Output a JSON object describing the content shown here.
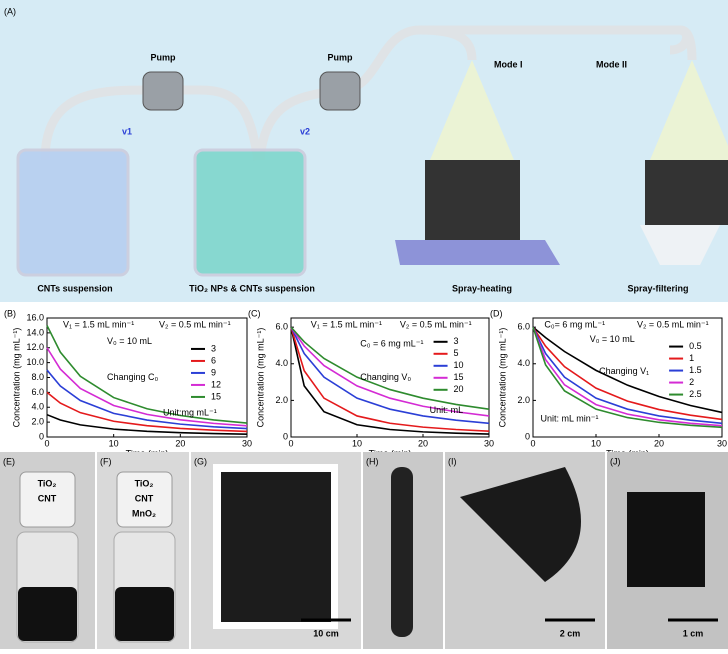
{
  "panel_a": {
    "label": "(A)",
    "pump_1": "Pump",
    "pump_2": "Pump",
    "flow_1": "v1",
    "flow_2": "v2",
    "mode_1": "Mode I",
    "mode_2": "Mode II",
    "beaker_1": "CNTs suspension",
    "beaker_2": "TiO₂ NPs & CNTs suspension",
    "process_1": "Spray-heating",
    "process_2": "Spray-filtering"
  },
  "chart_data": [
    {
      "type": "line",
      "panel": "(B)",
      "xlabel": "Time (min)",
      "ylabel": "Concentration (mg mL⁻¹)",
      "x": [
        0,
        2,
        5,
        10,
        15,
        20,
        25,
        30
      ],
      "xlim": [
        0,
        30
      ],
      "xticks": [
        0,
        10,
        20,
        30
      ],
      "ylim": [
        0,
        16
      ],
      "yticks": [
        0,
        {
          "value": 2,
          "label": "2.0"
        },
        {
          "value": 4,
          "label": "4.0"
        },
        {
          "value": 6,
          "label": "6.0"
        },
        {
          "value": 8,
          "label": "8.0"
        },
        {
          "value": 10,
          "label": "10.0"
        },
        {
          "value": 12,
          "label": "12.0"
        },
        {
          "value": 14,
          "label": "14.0"
        },
        {
          "value": 16,
          "label": "16.0"
        }
      ],
      "annotations": [
        "V₁ = 1.5 mL min⁻¹",
        "V₂ = 0.5 mL min⁻¹",
        "V₀ = 10 mL",
        "Changing C₀",
        "Unit:mg mL⁻¹"
      ],
      "series": [
        {
          "name": "3",
          "color": "#000000",
          "values": [
            3,
            2.28,
            1.63,
            1.06,
            0.76,
            0.58,
            0.46,
            0.38
          ]
        },
        {
          "name": "6",
          "color": "#e41a1c",
          "values": [
            6,
            4.56,
            3.27,
            2.12,
            1.52,
            1.15,
            0.92,
            0.75
          ]
        },
        {
          "name": "9",
          "color": "#2b3fd6",
          "values": [
            9,
            6.85,
            4.9,
            3.18,
            2.28,
            1.73,
            1.37,
            1.13
          ]
        },
        {
          "name": "12",
          "color": "#d42bd4",
          "values": [
            12,
            9.13,
            6.53,
            4.24,
            3.04,
            2.31,
            1.83,
            1.5
          ]
        },
        {
          "name": "15",
          "color": "#2e8b2e",
          "values": [
            15,
            11.41,
            8.16,
            5.3,
            3.8,
            2.89,
            2.29,
            1.88
          ]
        }
      ]
    },
    {
      "type": "line",
      "panel": "(C)",
      "xlabel": "Time (min)",
      "ylabel": "Concentration (mg mL⁻¹)",
      "x": [
        0,
        2,
        5,
        10,
        15,
        20,
        25,
        30
      ],
      "xlim": [
        0,
        30
      ],
      "xticks": [
        0,
        10,
        20,
        30
      ],
      "ylim": [
        0,
        6.5
      ],
      "yticks": [
        0,
        {
          "value": 2,
          "label": "2.0"
        },
        {
          "value": 4,
          "label": "4.0"
        },
        {
          "value": 6,
          "label": "6.0"
        }
      ],
      "annotations": [
        "V₁ = 1.5 mL min⁻¹",
        "V₂ = 0.5 mL min⁻¹",
        "C₀ = 6 mg mL⁻¹",
        "Changing V₀",
        "Unit: mL"
      ],
      "series": [
        {
          "name": "3",
          "color": "#000000",
          "values": [
            6,
            2.79,
            1.38,
            0.67,
            0.41,
            0.28,
            0.21,
            0.16
          ]
        },
        {
          "name": "5",
          "color": "#e41a1c",
          "values": [
            6,
            3.62,
            2.12,
            1.15,
            0.75,
            0.54,
            0.41,
            0.32
          ]
        },
        {
          "name": "10",
          "color": "#2b3fd6",
          "values": [
            6,
            4.56,
            3.27,
            2.12,
            1.52,
            1.15,
            0.92,
            0.75
          ]
        },
        {
          "name": "15",
          "color": "#d42bd4",
          "values": [
            6,
            4.97,
            3.9,
            2.79,
            2.12,
            1.68,
            1.38,
            1.15
          ]
        },
        {
          "name": "20",
          "color": "#2e8b2e",
          "values": [
            6,
            5.2,
            4.29,
            3.27,
            2.59,
            2.12,
            1.78,
            1.52
          ]
        }
      ]
    },
    {
      "type": "line",
      "panel": "(D)",
      "xlabel": "Time (min)",
      "ylabel": "Concentration (mg mL⁻¹)",
      "x": [
        0,
        2,
        5,
        10,
        15,
        20,
        25,
        30
      ],
      "xlim": [
        0,
        30
      ],
      "xticks": [
        0,
        10,
        20,
        30
      ],
      "ylim": [
        0,
        6.5
      ],
      "yticks": [
        0,
        {
          "value": 2,
          "label": "2.0"
        },
        {
          "value": 4,
          "label": "4.0"
        },
        {
          "value": 6,
          "label": "6.0"
        }
      ],
      "annotations": [
        "C₀= 6 mg mL⁻¹",
        "V₂ = 0.5 mL min⁻¹",
        "V₀ = 10 mL",
        "Changing V₁",
        "Unit: mL min⁻¹"
      ],
      "series": [
        {
          "name": "0.5",
          "color": "#000000",
          "values": [
            6,
            5.43,
            4.67,
            3.64,
            2.83,
            2.21,
            1.72,
            1.34
          ]
        },
        {
          "name": "1",
          "color": "#e41a1c",
          "values": [
            6,
            4.96,
            3.84,
            2.67,
            1.96,
            1.5,
            1.19,
            0.96
          ]
        },
        {
          "name": "1.5",
          "color": "#2b3fd6",
          "values": [
            6,
            4.56,
            3.27,
            2.12,
            1.52,
            1.15,
            0.92,
            0.75
          ]
        },
        {
          "name": "2",
          "color": "#d42bd4",
          "values": [
            6,
            4.23,
            2.85,
            1.77,
            1.25,
            0.94,
            0.75,
            0.62
          ]
        },
        {
          "name": "2.5",
          "color": "#2e8b2e",
          "values": [
            6,
            3.94,
            2.52,
            1.52,
            1.06,
            0.8,
            0.64,
            0.53
          ]
        }
      ]
    }
  ],
  "photos": [
    {
      "label": "(E)",
      "cap": [
        "TiO₂",
        "CNT"
      ]
    },
    {
      "label": "(F)",
      "cap": [
        "TiO₂",
        "CNT",
        "MnO₂"
      ]
    },
    {
      "label": "(G)",
      "scale": "10 cm"
    },
    {
      "label": "(H)"
    },
    {
      "label": "(I)",
      "scale": "2 cm"
    },
    {
      "label": "(J)",
      "scale": "1 cm"
    }
  ]
}
